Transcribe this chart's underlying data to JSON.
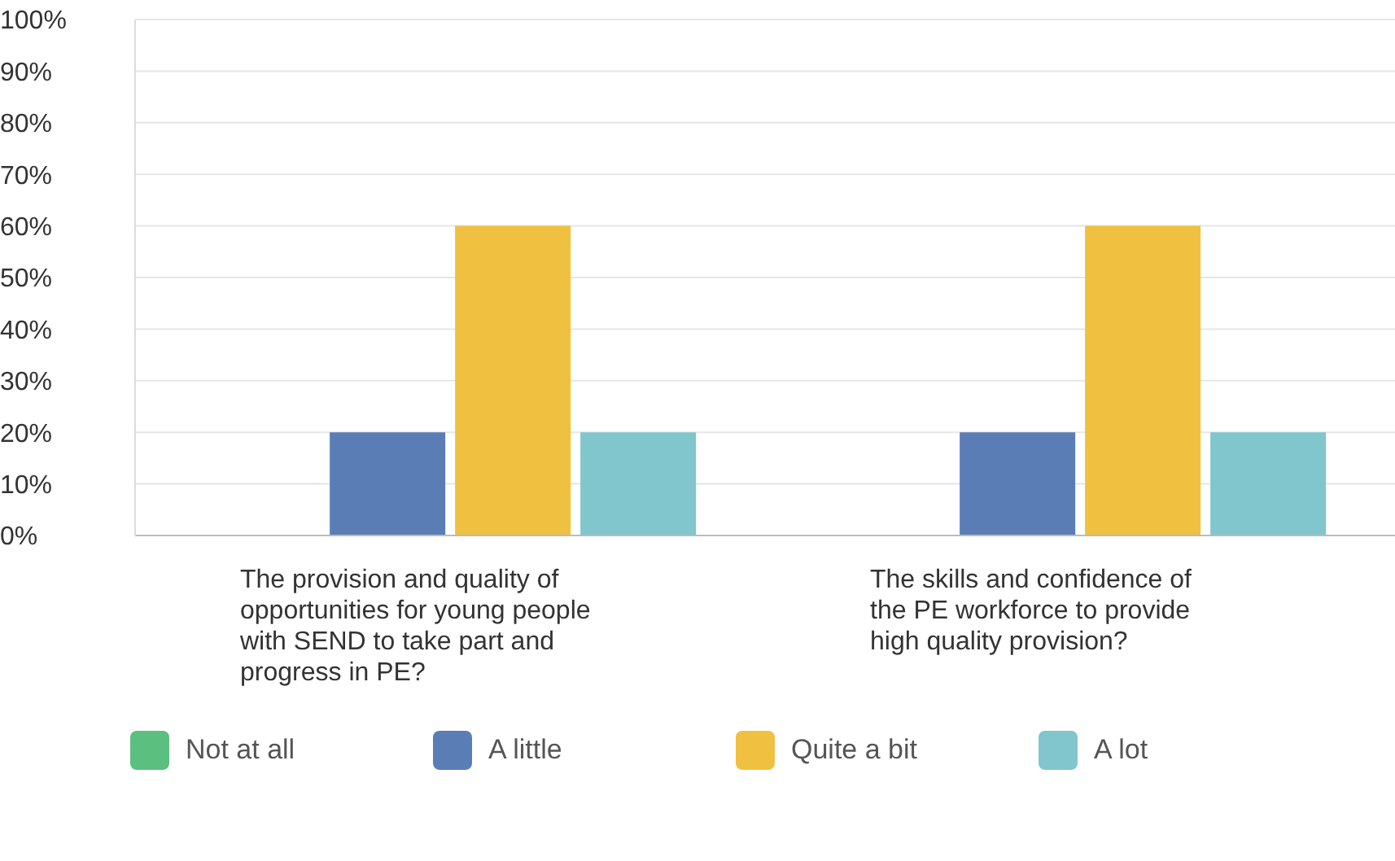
{
  "chart_data": {
    "type": "bar",
    "categories": [
      "The provision and quality of opportunities for young people with SEND to take part and progress in PE?",
      "The skills and confidence of the PE workforce to provide high quality provision?"
    ],
    "series": [
      {
        "name": "Not at all",
        "color": "#5bbf80",
        "values": [
          0,
          0
        ]
      },
      {
        "name": "A little",
        "color": "#5a7db6",
        "values": [
          20,
          20
        ]
      },
      {
        "name": "Quite a bit",
        "color": "#f0c040",
        "values": [
          60,
          60
        ]
      },
      {
        "name": "A lot",
        "color": "#80c6cc",
        "values": [
          20,
          20
        ]
      }
    ],
    "ylim": [
      0,
      100
    ],
    "yticks": [
      {
        "value": 0,
        "label": "0%"
      },
      {
        "value": 10,
        "label": "10%"
      },
      {
        "value": 20,
        "label": "20%"
      },
      {
        "value": 30,
        "label": "30%"
      },
      {
        "value": 40,
        "label": "40%"
      },
      {
        "value": 50,
        "label": "50%"
      },
      {
        "value": 60,
        "label": "60%"
      },
      {
        "value": 70,
        "label": "70%"
      },
      {
        "value": 80,
        "label": "80%"
      },
      {
        "value": 90,
        "label": "90%"
      },
      {
        "value": 100,
        "label": "100%"
      }
    ],
    "grid": "y",
    "legend": "bottom"
  }
}
